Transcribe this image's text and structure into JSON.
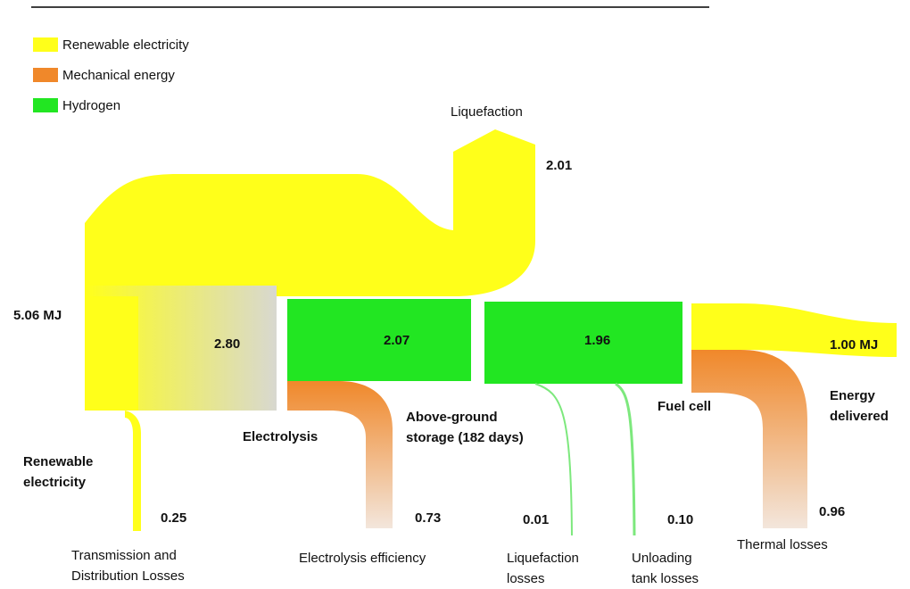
{
  "legend": [
    {
      "label": "Renewable electricity",
      "color": "#ffff1a"
    },
    {
      "label": "Mechanical energy",
      "color": "#f0882a"
    },
    {
      "label": "Hydrogen",
      "color": "#22e622"
    }
  ],
  "nodes": {
    "input": [
      "5.06 MJ"
    ],
    "renewable": [
      "Renewable",
      "electricity"
    ],
    "liquefaction": [
      "Liquefaction"
    ],
    "electrolysis": [
      "Electrolysis"
    ],
    "storage": [
      "Above-ground",
      "storage (182 days)"
    ],
    "fuel_cell": [
      "Fuel cell"
    ],
    "output": [
      "1.00 MJ"
    ],
    "delivered": [
      "Energy",
      "delivered"
    ]
  },
  "flows": {
    "liquefaction": "2.01",
    "electricity": "2.80",
    "hydrogen_stored": "2.07",
    "hydrogen_delivered": "1.96"
  },
  "losses": [
    {
      "value": "0.25",
      "label": [
        "Transmission and",
        "Distribution Losses"
      ]
    },
    {
      "value": "0.73",
      "label": [
        "Electrolysis efficiency"
      ]
    },
    {
      "value": "0.01",
      "label": [
        "Liquefaction",
        "losses"
      ]
    },
    {
      "value": "0.10",
      "label": [
        "Unloading",
        "tank losses"
      ]
    },
    {
      "value": "0.96",
      "label": [
        "Thermal losses"
      ]
    }
  ]
}
